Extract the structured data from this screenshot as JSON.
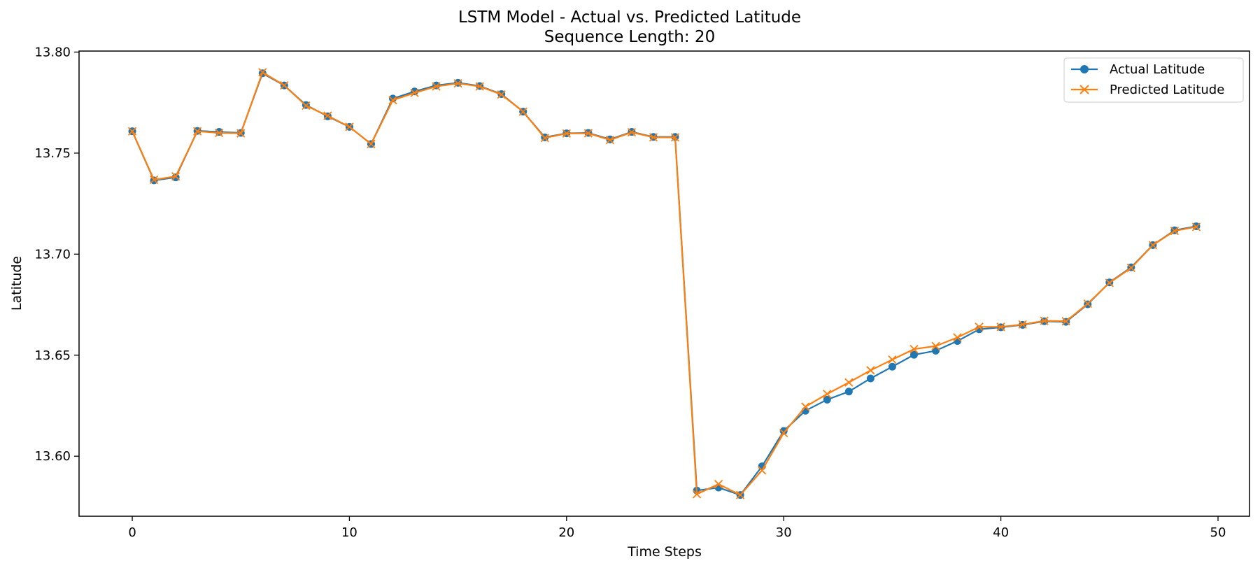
{
  "chart_data": {
    "type": "line",
    "title": "LSTM Model - Actual vs. Predicted Latitude",
    "subtitle": "Sequence Length: 20",
    "xlabel": "Time Steps",
    "ylabel": "Latitude",
    "xlim": [
      -2.45,
      51.45
    ],
    "ylim": [
      13.5703,
      13.8005
    ],
    "xticks": [
      0,
      10,
      20,
      30,
      40,
      50
    ],
    "yticks": [
      13.6,
      13.65,
      13.7,
      13.75,
      13.8
    ],
    "ytick_labels": [
      "13.60",
      "13.65",
      "13.70",
      "13.75",
      "13.80"
    ],
    "grid": false,
    "legend_position": "top-right",
    "x": [
      0,
      1,
      2,
      3,
      4,
      5,
      6,
      7,
      8,
      9,
      10,
      11,
      12,
      13,
      14,
      15,
      16,
      17,
      18,
      19,
      20,
      21,
      22,
      23,
      24,
      25,
      26,
      27,
      28,
      29,
      30,
      31,
      32,
      33,
      34,
      35,
      36,
      37,
      38,
      39,
      40,
      41,
      42,
      43,
      44,
      45,
      46,
      47,
      48,
      49
    ],
    "series": [
      {
        "name": "Actual Latitude",
        "color": "#1f77b4",
        "marker": "circle",
        "values": [
          13.7608,
          13.7365,
          13.738,
          13.761,
          13.7605,
          13.76,
          13.7895,
          13.7835,
          13.7738,
          13.7682,
          13.763,
          13.7545,
          13.777,
          13.7805,
          13.7835,
          13.7848,
          13.7832,
          13.7792,
          13.7705,
          13.7578,
          13.7598,
          13.76,
          13.7568,
          13.7605,
          13.758,
          13.758,
          13.583,
          13.5845,
          13.5808,
          13.595,
          13.6125,
          13.6225,
          13.628,
          13.632,
          13.6385,
          13.6443,
          13.6502,
          13.6522,
          13.657,
          13.6628,
          13.6638,
          13.665,
          13.6668,
          13.6665,
          13.6752,
          13.686,
          13.6935,
          13.7045,
          13.7118,
          13.7138
        ]
      },
      {
        "name": "Predicted Latitude",
        "color": "#ff7f0e",
        "marker": "x",
        "values": [
          13.7608,
          13.7368,
          13.7385,
          13.7608,
          13.76,
          13.7598,
          13.79,
          13.7835,
          13.7735,
          13.7685,
          13.763,
          13.7545,
          13.7762,
          13.7798,
          13.783,
          13.7845,
          13.783,
          13.779,
          13.7705,
          13.7575,
          13.7597,
          13.7598,
          13.7565,
          13.7603,
          13.7578,
          13.7578,
          13.5812,
          13.5862,
          13.5808,
          13.593,
          13.6115,
          13.6245,
          13.6308,
          13.6365,
          13.6425,
          13.6478,
          13.653,
          13.6545,
          13.6588,
          13.664,
          13.664,
          13.6652,
          13.667,
          13.6668,
          13.6755,
          13.6858,
          13.6932,
          13.7045,
          13.7115,
          13.7135
        ]
      }
    ]
  }
}
